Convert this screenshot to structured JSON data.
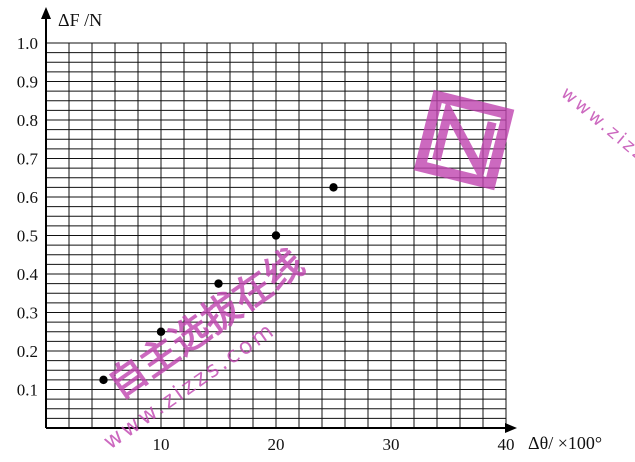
{
  "chart_data": {
    "type": "scatter",
    "ylabel": "ΔF /N",
    "xlabel": "Δθ/ ×100°",
    "x_ticks": [
      "10",
      "20",
      "30",
      "40"
    ],
    "y_ticks": [
      "0.1",
      "0.2",
      "0.3",
      "0.4",
      "0.5",
      "0.6",
      "0.7",
      "0.8",
      "0.9",
      "1.0"
    ],
    "xlim": [
      0,
      40
    ],
    "ylim": [
      0,
      1.0
    ],
    "grid": true,
    "points": [
      {
        "x": 5,
        "y": 0.125
      },
      {
        "x": 10,
        "y": 0.25
      },
      {
        "x": 15,
        "y": 0.375
      },
      {
        "x": 20,
        "y": 0.5
      },
      {
        "x": 25,
        "y": 0.625
      }
    ]
  },
  "watermark": {
    "site": "www.zizzs.com",
    "brand_chars": "自主选拔在线",
    "color": "#c044b0"
  }
}
